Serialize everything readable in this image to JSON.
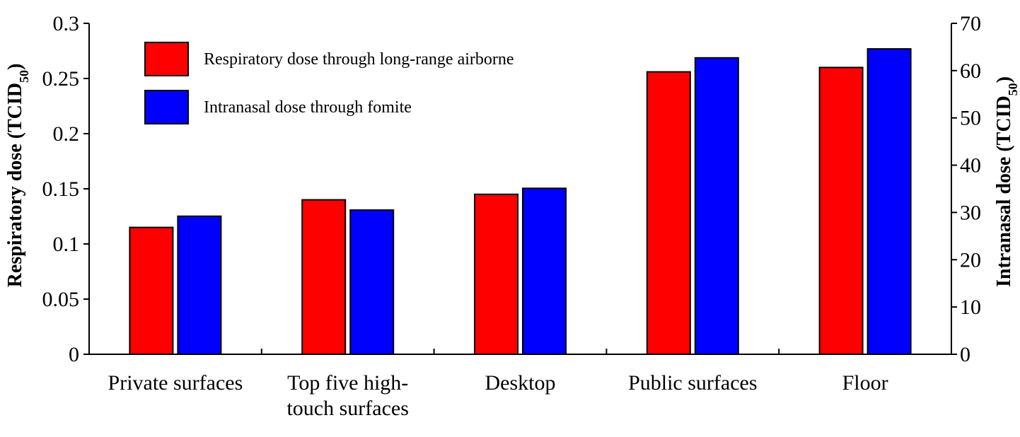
{
  "chart_data": {
    "type": "bar",
    "categories": [
      [
        "Private surfaces"
      ],
      [
        "Top five high-",
        "touch surfaces"
      ],
      [
        "Desktop"
      ],
      [
        "Public surfaces"
      ],
      [
        "Floor"
      ]
    ],
    "series": [
      {
        "name": "Respiratory dose through long-range airborne",
        "axis": "left",
        "color": "#FF0000",
        "values": [
          0.115,
          0.14,
          0.145,
          0.256,
          0.26
        ]
      },
      {
        "name": "Intranasal dose through fomite",
        "axis": "right",
        "color": "#0000FF",
        "values": [
          29.2,
          30.5,
          35.1,
          62.7,
          64.6
        ]
      }
    ],
    "y_left": {
      "label": "Respiratory dose (TCID",
      "label_sub": "50",
      "label_end": ")",
      "ylim": [
        0,
        0.3
      ],
      "ticks": [
        "0",
        "0.05",
        "0.1",
        "0.15",
        "0.2",
        "0.25",
        "0.3"
      ],
      "tick_values": [
        0,
        0.05,
        0.1,
        0.15,
        0.2,
        0.25,
        0.3
      ]
    },
    "y_right": {
      "label": "Intranasal dose (TCID",
      "label_sub": "50",
      "label_end": ")",
      "ylim": [
        0,
        70
      ],
      "ticks": [
        "0",
        "10",
        "20",
        "30",
        "40",
        "50",
        "60",
        "70"
      ],
      "tick_values": [
        0,
        10,
        20,
        30,
        40,
        50,
        60,
        70
      ]
    },
    "legend_position": "top-left",
    "grid": false
  }
}
